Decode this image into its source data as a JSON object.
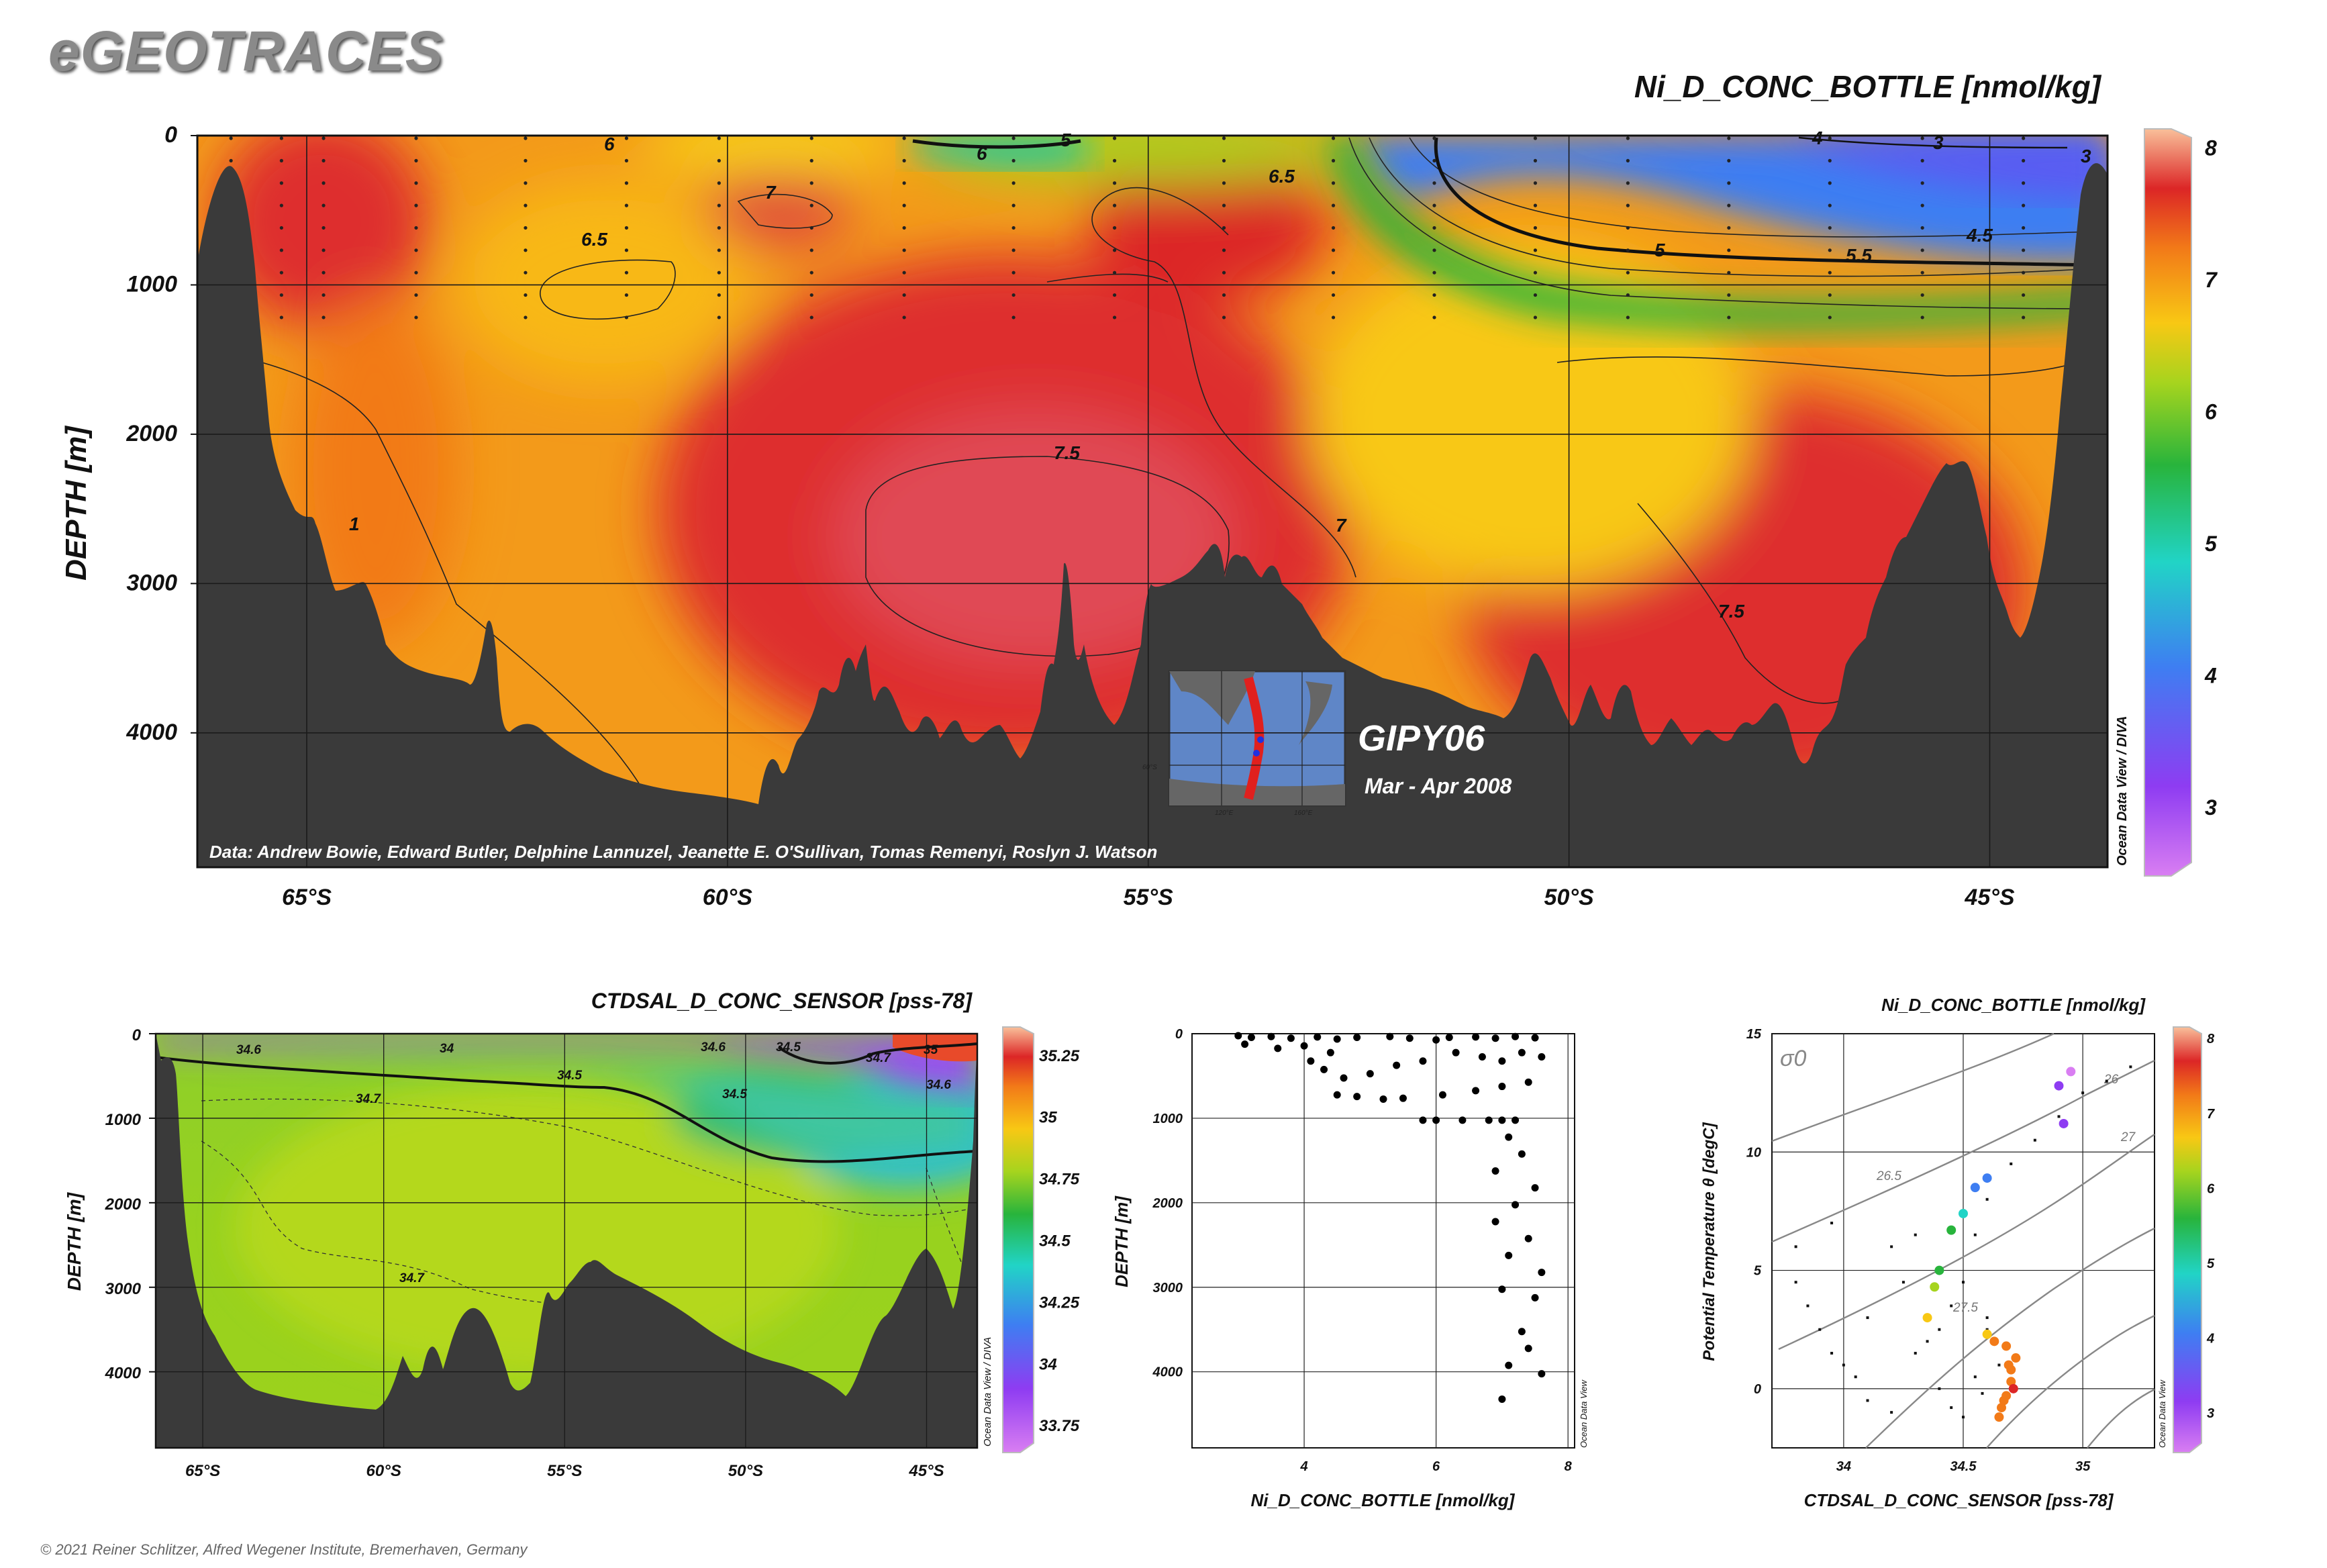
{
  "header": {
    "logo": "eGEOTRACES"
  },
  "credit": "© 2021 Reiner Schlitzer, Alfred Wegener Institute, Bremerhaven, Germany",
  "main_section": {
    "title": "Ni_D_CONC_BOTTLE [nmol/kg]",
    "ylabel": "DEPTH [m]",
    "data_credit": "Data: Andrew Bowie, Edward Butler, Delphine Lannuzel, Jeanette E. O'Sullivan, Tomas Remenyi, Roslyn J. Watson",
    "cruise": "GIPY06",
    "period": "Mar - Apr 2008",
    "odv_label": "Ocean Data View / DIVA",
    "inset_tick_lat": "60°S",
    "inset_tick_lon1": "120°E",
    "inset_tick_lon2": "160°E",
    "contour_labels": [
      "6",
      "6",
      "5",
      "7",
      "6.5",
      "6.5",
      "7.5",
      "7",
      "1",
      "7.5",
      "5",
      "5.5",
      "4.5",
      "3",
      "4",
      "3"
    ]
  },
  "salinity_section": {
    "title": "CTDSAL_D_CONC_SENSOR [pss-78]",
    "ylabel": "DEPTH [m]",
    "odv_label": "Ocean Data View / DIVA",
    "contour_labels": [
      "34.6",
      "34",
      "34.5",
      "34.7",
      "34.7",
      "34.6",
      "34.5",
      "34.7",
      "35",
      "34.5",
      "34.6"
    ]
  },
  "scatter_profile": {
    "xlabel": "Ni_D_CONC_BOTTLE [nmol/kg]",
    "ylabel": "DEPTH [m]",
    "odv_label": "Ocean Data View"
  },
  "ts_plot": {
    "title": "Ni_D_CONC_BOTTLE [nmol/kg]",
    "xlabel": "CTDSAL_D_CONC_SENSOR [pss-78]",
    "ylabel": "Potential Temperature θ [degC]",
    "sigma_label": "σ0",
    "isopycnal_labels": [
      "26",
      "26.5",
      "27",
      "27.5"
    ],
    "odv_label": "Ocean Data View"
  },
  "chart_data": [
    {
      "type": "heatmap",
      "title": "Ni_D_CONC_BOTTLE [nmol/kg]",
      "ylabel": "DEPTH [m]",
      "x_ticks": [
        "65°S",
        "60°S",
        "55°S",
        "50°S",
        "45°S"
      ],
      "y_ticks": [
        "0",
        "1000",
        "2000",
        "3000",
        "4000"
      ],
      "xlim": [
        -66.3,
        -43.6
      ],
      "ylim": [
        0,
        4900
      ],
      "colorbar": {
        "ticks": [
          "3",
          "4",
          "5",
          "6",
          "7",
          "8"
        ],
        "range": [
          2.5,
          8.1
        ]
      },
      "grid": true
    },
    {
      "type": "heatmap",
      "title": "CTDSAL_D_CONC_SENSOR [pss-78]",
      "ylabel": "DEPTH [m]",
      "x_ticks": [
        "65°S",
        "60°S",
        "55°S",
        "50°S",
        "45°S"
      ],
      "y_ticks": [
        "0",
        "1000",
        "2000",
        "3000",
        "4000"
      ],
      "xlim": [
        -66.3,
        -43.6
      ],
      "ylim": [
        0,
        4900
      ],
      "colorbar": {
        "ticks": [
          "33.75",
          "34",
          "34.25",
          "34.5",
          "34.75",
          "35",
          "35.25"
        ],
        "range": [
          33.65,
          35.35
        ]
      },
      "grid": true
    },
    {
      "type": "scatter",
      "xlabel": "Ni_D_CONC_BOTTLE [nmol/kg]",
      "ylabel": "DEPTH [m]",
      "x_ticks": [
        "4",
        "6",
        "8"
      ],
      "y_ticks": [
        "0",
        "1000",
        "2000",
        "3000",
        "4000"
      ],
      "xlim": [
        2.3,
        8.1
      ],
      "ylim": [
        0,
        4900
      ],
      "points": [
        [
          3.0,
          0
        ],
        [
          3.2,
          20
        ],
        [
          3.5,
          10
        ],
        [
          3.8,
          30
        ],
        [
          4.2,
          15
        ],
        [
          4.5,
          40
        ],
        [
          4.8,
          20
        ],
        [
          5.3,
          10
        ],
        [
          5.6,
          30
        ],
        [
          6.0,
          50
        ],
        [
          6.2,
          20
        ],
        [
          6.6,
          15
        ],
        [
          6.9,
          30
        ],
        [
          7.2,
          10
        ],
        [
          7.5,
          25
        ],
        [
          3.1,
          100
        ],
        [
          3.6,
          150
        ],
        [
          4.0,
          120
        ],
        [
          4.4,
          200
        ],
        [
          4.1,
          300
        ],
        [
          4.3,
          400
        ],
        [
          4.6,
          500
        ],
        [
          5.0,
          450
        ],
        [
          5.4,
          350
        ],
        [
          5.8,
          300
        ],
        [
          6.3,
          200
        ],
        [
          6.7,
          250
        ],
        [
          7.0,
          300
        ],
        [
          7.3,
          200
        ],
        [
          7.6,
          250
        ],
        [
          4.5,
          700
        ],
        [
          4.8,
          720
        ],
        [
          5.2,
          750
        ],
        [
          5.5,
          740
        ],
        [
          6.1,
          700
        ],
        [
          6.6,
          650
        ],
        [
          7.0,
          600
        ],
        [
          7.4,
          550
        ],
        [
          6.4,
          1000
        ],
        [
          6.8,
          1000
        ],
        [
          7.0,
          1000
        ],
        [
          7.2,
          1000
        ],
        [
          5.8,
          1000
        ],
        [
          6.0,
          1000
        ],
        [
          7.1,
          1200
        ],
        [
          7.3,
          1400
        ],
        [
          6.9,
          1600
        ],
        [
          7.5,
          1800
        ],
        [
          7.2,
          2000
        ],
        [
          6.9,
          2200
        ],
        [
          7.4,
          2400
        ],
        [
          7.1,
          2600
        ],
        [
          7.6,
          2800
        ],
        [
          7.0,
          3000
        ],
        [
          7.5,
          3100
        ],
        [
          7.3,
          3500
        ],
        [
          7.4,
          3700
        ],
        [
          7.1,
          3900
        ],
        [
          7.6,
          4000
        ],
        [
          7.0,
          4300
        ]
      ]
    },
    {
      "type": "scatter",
      "title": "Ni_D_CONC_BOTTLE [nmol/kg]",
      "xlabel": "CTDSAL_D_CONC_SENSOR [pss-78]",
      "ylabel": "Potential Temperature θ [degC]",
      "x_ticks": [
        "34",
        "34.5",
        "35"
      ],
      "y_ticks": [
        "0",
        "5",
        "10",
        "15"
      ],
      "xlim": [
        33.7,
        35.3
      ],
      "ylim": [
        -2.5,
        15
      ],
      "colorbar": {
        "ticks": [
          "3",
          "4",
          "5",
          "6",
          "7",
          "8"
        ],
        "range": [
          2.5,
          8.1
        ]
      },
      "points": [
        [
          34.95,
          13.4,
          3.1
        ],
        [
          34.9,
          12.8,
          3.3
        ],
        [
          34.92,
          11.2,
          3.6
        ],
        [
          34.6,
          8.9,
          4.3
        ],
        [
          34.55,
          8.5,
          4.6
        ],
        [
          34.5,
          7.4,
          5.2
        ],
        [
          34.45,
          6.7,
          5.6
        ],
        [
          34.4,
          5.0,
          6.1
        ],
        [
          34.38,
          4.3,
          6.5
        ],
        [
          34.35,
          3.0,
          6.8
        ],
        [
          34.6,
          2.3,
          7.0
        ],
        [
          34.68,
          1.8,
          7.2
        ],
        [
          34.72,
          1.3,
          7.4
        ],
        [
          34.7,
          0.8,
          7.4
        ],
        [
          34.7,
          0.3,
          7.5
        ],
        [
          34.68,
          -0.3,
          7.5
        ],
        [
          34.66,
          -0.8,
          7.4
        ],
        [
          34.65,
          -1.2,
          7.3
        ],
        [
          34.63,
          2.0,
          7.3
        ],
        [
          34.69,
          1.0,
          7.5
        ],
        [
          34.71,
          0.0,
          7.6
        ],
        [
          34.67,
          -0.5,
          7.5
        ]
      ],
      "background_points": [
        [
          33.8,
          4.5
        ],
        [
          33.85,
          3.5
        ],
        [
          33.9,
          2.5
        ],
        [
          33.95,
          1.5
        ],
        [
          34.0,
          1.0
        ],
        [
          34.05,
          0.5
        ],
        [
          34.1,
          -0.5
        ],
        [
          34.2,
          -1.0
        ],
        [
          34.3,
          1.5
        ],
        [
          34.35,
          2.0
        ],
        [
          34.4,
          2.5
        ],
        [
          34.45,
          3.5
        ],
        [
          34.5,
          4.5
        ],
        [
          34.55,
          6.5
        ],
        [
          34.6,
          8.0
        ],
        [
          34.7,
          9.5
        ],
        [
          34.8,
          10.5
        ],
        [
          34.9,
          11.5
        ],
        [
          35.0,
          12.5
        ],
        [
          35.1,
          13.0
        ],
        [
          35.2,
          13.6
        ],
        [
          34.4,
          0.0
        ],
        [
          34.45,
          -0.8
        ],
        [
          34.5,
          -1.2
        ],
        [
          34.55,
          0.5
        ],
        [
          34.2,
          6.0
        ],
        [
          34.3,
          6.5
        ],
        [
          34.1,
          3.0
        ],
        [
          34.25,
          4.5
        ],
        [
          34.6,
          3.0
        ],
        [
          33.8,
          6.0
        ],
        [
          33.95,
          7.0
        ],
        [
          34.6,
          2.5
        ],
        [
          34.65,
          1.0
        ],
        [
          34.58,
          -0.2
        ]
      ],
      "isopycnals": [
        "26",
        "26.5",
        "27",
        "27.5"
      ]
    }
  ]
}
